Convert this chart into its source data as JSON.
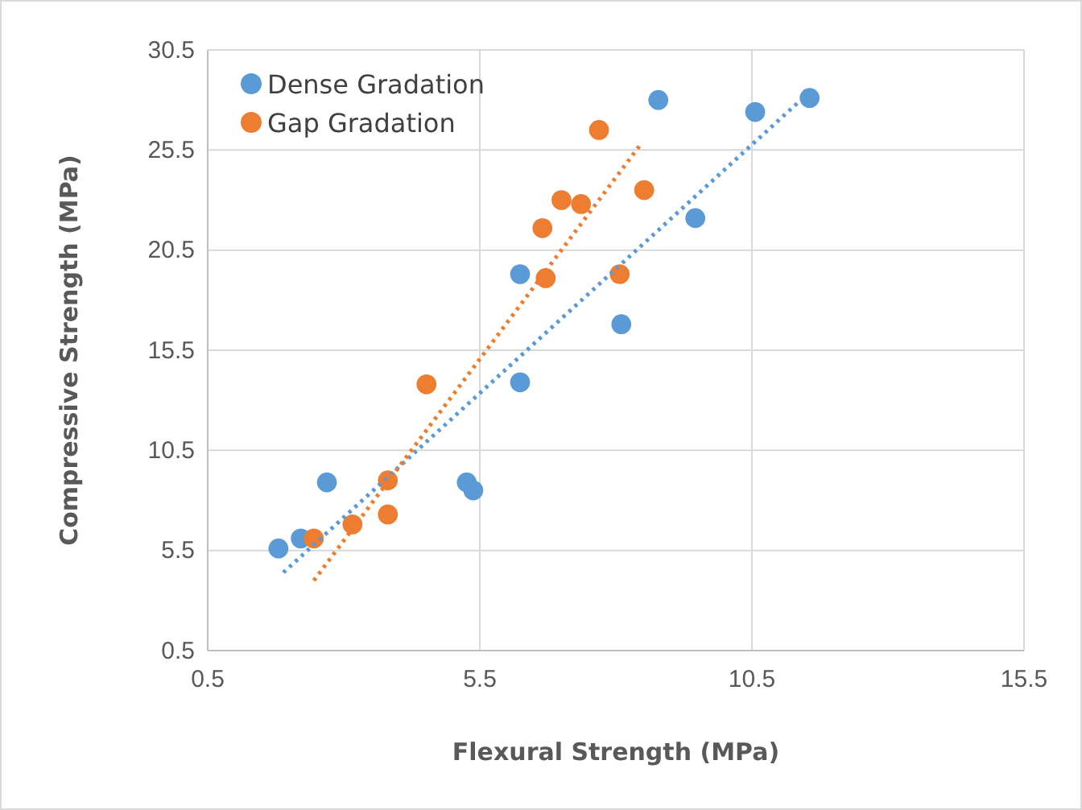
{
  "chart_data": {
    "type": "scatter",
    "xlabel": "Flexural  Strength (MPa)",
    "ylabel": "Compressive  Strength (MPa)",
    "xlim": [
      0.5,
      15.5
    ],
    "xticks": [
      0.5,
      5.5,
      10.5,
      15.5
    ],
    "ylim": [
      0.5,
      30.5
    ],
    "yticks": [
      0.5,
      5.5,
      10.5,
      15.5,
      20.5,
      25.5,
      30.5
    ],
    "grid": true,
    "legend": "top left",
    "marker": "circle",
    "series": [
      {
        "name": "Dense Gradation",
        "color": "#5b9bd5",
        "x": [
          1.8,
          2.21,
          2.69,
          5.26,
          5.38,
          6.24,
          6.24,
          8.1,
          8.78,
          9.46,
          10.56,
          11.56
        ],
        "values": [
          5.6,
          6.1,
          8.9,
          8.9,
          8.5,
          13.9,
          19.3,
          16.8,
          28.0,
          22.1,
          27.4,
          28.1
        ]
      },
      {
        "name": "Gap Gradation",
        "color": "#ed7d31",
        "x": [
          2.45,
          3.16,
          3.81,
          3.81,
          4.52,
          6.65,
          6.71,
          7.0,
          7.36,
          7.69,
          8.07,
          8.52
        ],
        "values": [
          6.1,
          6.8,
          9.0,
          7.3,
          13.8,
          21.6,
          19.1,
          23.0,
          22.8,
          26.5,
          19.3,
          23.5
        ]
      },
      {
        "type": "line",
        "color": "#5b9bd5",
        "line_style": "dotted",
        "marker": "none",
        "x": [
          1.89,
          11.36
        ],
        "values": [
          4.4,
          27.9
        ]
      },
      {
        "type": "line",
        "color": "#ed7d31",
        "line_style": "dotted",
        "marker": "none",
        "x": [
          2.45,
          8.46
        ],
        "values": [
          4.0,
          25.8
        ]
      }
    ]
  }
}
